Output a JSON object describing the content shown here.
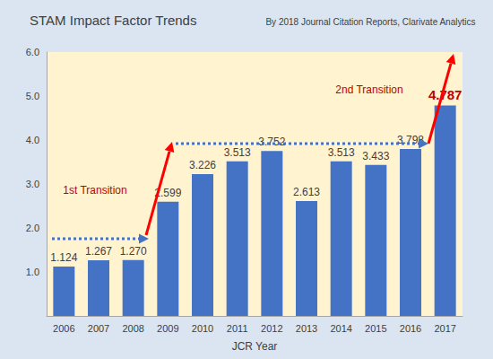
{
  "chart_data": {
    "type": "bar",
    "title": "STAM Impact Factor Trends",
    "subtitle": "By 2018 Journal Citation Reports, Clarivate Analytics",
    "x_label": "JCR Year",
    "categories": [
      "2006",
      "2007",
      "2008",
      "2009",
      "2010",
      "2011",
      "2012",
      "2013",
      "2014",
      "2015",
      "2016",
      "2017"
    ],
    "values": [
      1.124,
      1.267,
      1.27,
      2.599,
      3.226,
      3.513,
      3.752,
      2.613,
      3.513,
      3.433,
      3.798,
      4.787
    ],
    "value_labels": [
      "1.124",
      "1.267",
      "1.270",
      "2.599",
      "3.226",
      "3.513",
      "3.752",
      "2.613",
      "3.513",
      "3.433",
      "3.798",
      "4.787"
    ],
    "color": "#4472c4",
    "ylim": [
      0,
      6
    ],
    "yticks": [
      {
        "value": 1,
        "label": "1.0"
      },
      {
        "value": 2,
        "label": "2.0"
      },
      {
        "value": 3,
        "label": "3.0"
      },
      {
        "value": 4,
        "label": "4.0"
      },
      {
        "value": 5,
        "label": "5.0"
      },
      {
        "value": 6,
        "label": "6.0"
      }
    ],
    "grid": false,
    "data_labels": true,
    "annotations": [
      "1st Transition",
      "2nd Transition"
    ]
  }
}
